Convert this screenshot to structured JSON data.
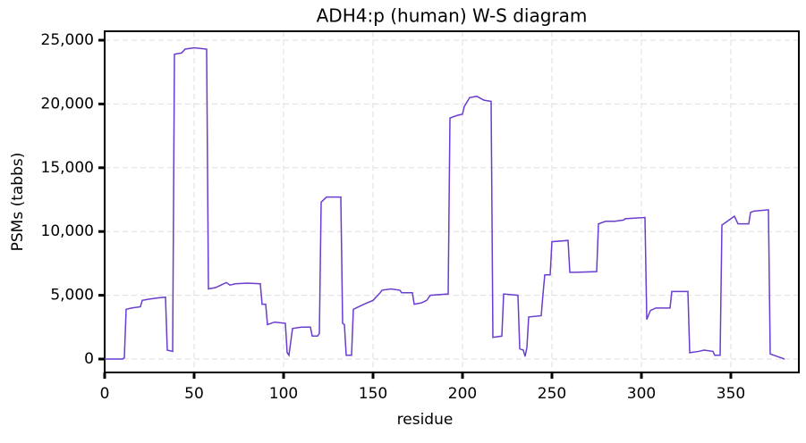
{
  "chart_data": {
    "type": "line",
    "title": "ADH4:p (human) W-S diagram",
    "xlabel": "residue",
    "ylabel": "PSMs (tabbs)",
    "x": [
      0,
      10,
      11,
      12,
      15,
      20,
      21,
      25,
      30,
      34,
      35,
      38,
      39,
      43,
      45,
      50,
      57,
      58,
      62,
      65,
      68,
      70,
      73,
      80,
      87,
      88,
      90,
      91,
      95,
      101,
      102,
      103,
      105,
      110,
      115,
      116,
      119,
      120,
      121,
      124,
      132,
      133,
      134,
      135,
      138,
      139,
      142,
      145,
      150,
      154,
      155,
      160,
      165,
      166,
      172,
      173,
      177,
      180,
      182,
      192,
      193,
      197,
      200,
      201,
      204,
      208,
      212,
      216,
      217,
      222,
      223,
      231,
      232,
      234,
      235,
      236,
      237,
      244,
      245,
      246,
      249,
      250,
      259,
      260,
      263,
      275,
      276,
      280,
      285,
      290,
      291,
      302,
      303,
      305,
      308,
      316,
      317,
      326,
      327,
      332,
      335,
      340,
      341,
      344,
      345,
      348,
      352,
      354,
      360,
      361,
      363,
      371,
      372,
      378,
      380
    ],
    "series": [
      {
        "name": "PSMs",
        "color": "#6a3ccf",
        "values": [
          0,
          0,
          100,
          3900,
          4000,
          4100,
          4600,
          4700,
          4800,
          4850,
          700,
          600,
          23900,
          24000,
          24300,
          24400,
          24300,
          5500,
          5600,
          5800,
          6000,
          5800,
          5900,
          5950,
          5900,
          4300,
          4300,
          2700,
          2900,
          2800,
          500,
          300,
          2400,
          2500,
          2500,
          1800,
          1800,
          2000,
          12300,
          12700,
          12700,
          2800,
          2700,
          300,
          300,
          3900,
          4100,
          4300,
          4600,
          5200,
          5400,
          5500,
          5400,
          5200,
          5200,
          4300,
          4400,
          4600,
          5000,
          5100,
          18900,
          19100,
          19200,
          19800,
          20500,
          20600,
          20300,
          20200,
          1700,
          1800,
          5100,
          5000,
          800,
          700,
          200,
          900,
          3300,
          3400,
          5100,
          6600,
          6600,
          9200,
          9300,
          6800,
          6800,
          6850,
          10600,
          10800,
          10800,
          10900,
          11000,
          11100,
          3100,
          3800,
          4000,
          4000,
          5300,
          5300,
          500,
          600,
          700,
          600,
          300,
          300,
          10500,
          10800,
          11200,
          10600,
          10600,
          11500,
          11600,
          11700,
          400,
          100,
          0
        ]
      }
    ],
    "xlim": [
      0,
      388
    ],
    "xticks": [
      0,
      50,
      100,
      150,
      200,
      250,
      300,
      350
    ],
    "ylim": [
      -1050,
      25700
    ],
    "yticks": [
      {
        "value": 0,
        "label": "0"
      },
      {
        "value": 5000,
        "label": "5,000"
      },
      {
        "value": 10000,
        "label": "10,000"
      },
      {
        "value": 15000,
        "label": "15,000"
      },
      {
        "value": 20000,
        "label": "20,000"
      },
      {
        "value": 25000,
        "label": "25,000"
      }
    ],
    "grid": true
  }
}
